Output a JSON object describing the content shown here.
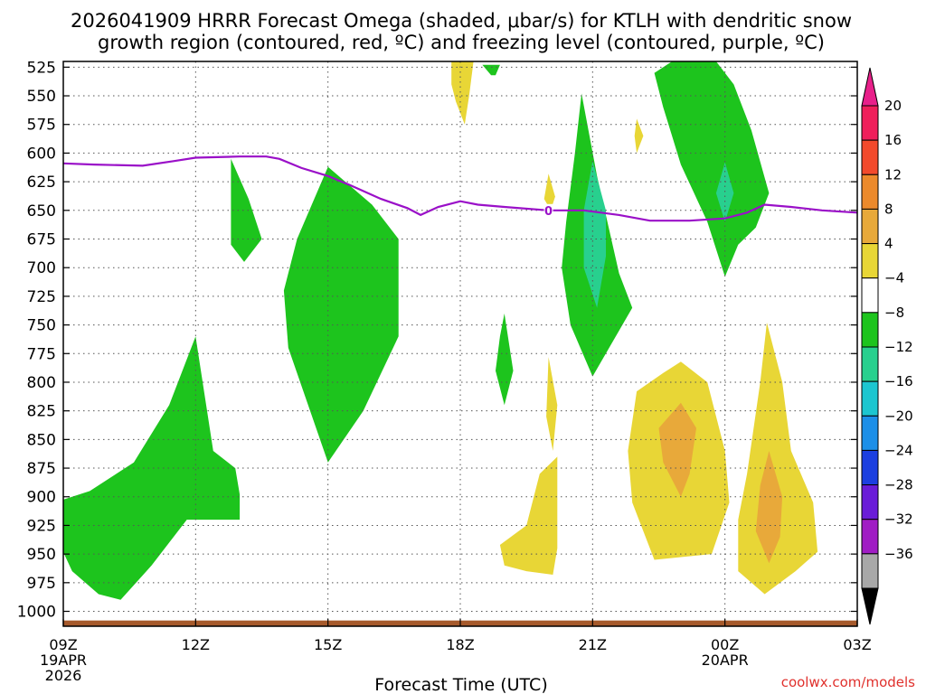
{
  "chart_data": {
    "type": "heatmap",
    "title_line1": "2026041909 HRRR Forecast Omega (shaded, μbar/s) for KTLH with dendritic snow",
    "title_line2": "growth region (contoured, red, ºC) and freezing level (contoured, purple, ºC)",
    "xlabel": "Forecast Time (UTC)",
    "credit": "coolwx.com/models",
    "x_ticks": [
      {
        "hour": 0,
        "label": "09Z",
        "sub1": "19APR",
        "sub2": "2026"
      },
      {
        "hour": 3,
        "label": "12Z",
        "sub1": "",
        "sub2": ""
      },
      {
        "hour": 6,
        "label": "15Z",
        "sub1": "",
        "sub2": ""
      },
      {
        "hour": 9,
        "label": "18Z",
        "sub1": "",
        "sub2": ""
      },
      {
        "hour": 12,
        "label": "21Z",
        "sub1": "",
        "sub2": ""
      },
      {
        "hour": 15,
        "label": "00Z",
        "sub1": "20APR",
        "sub2": ""
      },
      {
        "hour": 18,
        "label": "03Z",
        "sub1": "",
        "sub2": ""
      }
    ],
    "xlim": [
      0,
      18
    ],
    "y_ticks": [
      "525",
      "550",
      "575",
      "600",
      "625",
      "650",
      "675",
      "700",
      "725",
      "750",
      "775",
      "800",
      "825",
      "850",
      "875",
      "900",
      "925",
      "950",
      "975",
      "1000"
    ],
    "ylim": [
      520,
      1013
    ],
    "colorbar": {
      "labels": [
        "20",
        "16",
        "12",
        "8",
        "4",
        "−4",
        "−8",
        "−12",
        "−16",
        "−20",
        "−24",
        "−28",
        "−32",
        "−36"
      ],
      "colors": [
        "#ef1f5b",
        "#f24a2c",
        "#ec8a2c",
        "#e8a93a",
        "#e8d636",
        "#ffffff",
        "#1dc41d",
        "#28d08e",
        "#1cc6d0",
        "#1c8fe8",
        "#1c3fe0",
        "#6a1cd8",
        "#a01cc4",
        "#a8a8a8"
      ],
      "top_arrow_color": "#e8208a",
      "bottom_arrow_color": "#000000"
    },
    "regions": [
      {
        "name": "omega-neg4-region-a",
        "color": "#1dc41d",
        "points": [
          [
            -0.2,
            905
          ],
          [
            0.6,
            895
          ],
          [
            1.6,
            870
          ],
          [
            2.4,
            820
          ],
          [
            3.0,
            760
          ],
          [
            3.4,
            860
          ],
          [
            3.9,
            875
          ],
          [
            4.0,
            898
          ],
          [
            4.0,
            920
          ],
          [
            2.8,
            920
          ],
          [
            2.0,
            960
          ],
          [
            1.3,
            990
          ],
          [
            0.8,
            985
          ],
          [
            0.2,
            965
          ],
          [
            -0.1,
            940
          ]
        ]
      },
      {
        "name": "omega-neg4-region-b",
        "color": "#1dc41d",
        "points": [
          [
            3.8,
            605
          ],
          [
            4.2,
            640
          ],
          [
            4.5,
            675
          ],
          [
            4.1,
            695
          ],
          [
            3.8,
            680
          ],
          [
            3.8,
            640
          ]
        ]
      },
      {
        "name": "omega-neg4-region-c",
        "color": "#1dc41d",
        "points": [
          [
            6.0,
            612
          ],
          [
            7.0,
            645
          ],
          [
            7.6,
            675
          ],
          [
            7.6,
            760
          ],
          [
            6.8,
            825
          ],
          [
            6.0,
            870
          ],
          [
            5.1,
            770
          ],
          [
            5.0,
            720
          ],
          [
            5.3,
            675
          ]
        ]
      },
      {
        "name": "omega-neg4-region-d",
        "color": "#1dc41d",
        "points": [
          [
            10.0,
            740
          ],
          [
            10.2,
            790
          ],
          [
            10.0,
            820
          ],
          [
            9.8,
            790
          ],
          [
            9.9,
            760
          ]
        ]
      },
      {
        "name": "omega-neg4-region-e",
        "color": "#1dc41d",
        "points": [
          [
            11.75,
            548
          ],
          [
            12.1,
            620
          ],
          [
            12.6,
            705
          ],
          [
            12.9,
            735
          ],
          [
            12.0,
            795
          ],
          [
            11.5,
            750
          ],
          [
            11.3,
            700
          ],
          [
            11.4,
            660
          ],
          [
            11.6,
            600
          ]
        ]
      },
      {
        "name": "omega-neg4-region-f",
        "color": "#1dc41d",
        "points": [
          [
            13.8,
            520
          ],
          [
            14.8,
            520
          ],
          [
            15.2,
            540
          ],
          [
            15.6,
            580
          ],
          [
            16.0,
            635
          ],
          [
            15.7,
            665
          ],
          [
            15.3,
            680
          ],
          [
            15.0,
            708
          ],
          [
            14.6,
            660
          ],
          [
            14.0,
            610
          ],
          [
            13.6,
            560
          ],
          [
            13.4,
            530
          ]
        ]
      },
      {
        "name": "omega-neg4-region-g",
        "color": "#1dc41d",
        "points": [
          [
            9.5,
            523
          ],
          [
            9.9,
            523
          ],
          [
            9.8,
            532
          ],
          [
            9.7,
            532
          ]
        ]
      },
      {
        "name": "omega-neg8-region-a",
        "color": "#28d08e",
        "points": [
          [
            12.0,
            607
          ],
          [
            12.3,
            650
          ],
          [
            12.3,
            690
          ],
          [
            12.1,
            735
          ],
          [
            11.8,
            700
          ],
          [
            11.8,
            650
          ]
        ]
      },
      {
        "name": "omega-neg8-region-b",
        "color": "#28d08e",
        "points": [
          [
            15.0,
            608
          ],
          [
            15.2,
            635
          ],
          [
            15.0,
            660
          ],
          [
            14.8,
            635
          ]
        ]
      },
      {
        "name": "omega-pos4-region-a",
        "color": "#e8d636",
        "points": [
          [
            8.8,
            520
          ],
          [
            9.3,
            520
          ],
          [
            9.2,
            550
          ],
          [
            9.1,
            575
          ],
          [
            8.9,
            555
          ],
          [
            8.8,
            540
          ]
        ]
      },
      {
        "name": "omega-pos4-region-b",
        "color": "#e8d636",
        "points": [
          [
            9.9,
            942
          ],
          [
            10.5,
            925
          ],
          [
            10.8,
            880
          ],
          [
            11.2,
            865
          ],
          [
            11.2,
            945
          ],
          [
            11.1,
            968
          ],
          [
            10.5,
            965
          ],
          [
            10.0,
            960
          ]
        ]
      },
      {
        "name": "omega-pos4-region-c",
        "color": "#e8d636",
        "points": [
          [
            11.0,
            778
          ],
          [
            11.2,
            820
          ],
          [
            11.1,
            860
          ],
          [
            10.95,
            830
          ]
        ]
      },
      {
        "name": "omega-pos4-region-d",
        "color": "#e8d636",
        "points": [
          [
            11.0,
            618
          ],
          [
            11.15,
            638
          ],
          [
            11.05,
            650
          ],
          [
            10.9,
            640
          ]
        ]
      },
      {
        "name": "omega-pos4-region-e",
        "color": "#e8d636",
        "points": [
          [
            13.0,
            570
          ],
          [
            13.15,
            585
          ],
          [
            13.0,
            600
          ],
          [
            12.95,
            585
          ]
        ]
      },
      {
        "name": "omega-pos4-region-f",
        "color": "#e8d636",
        "points": [
          [
            14.0,
            782
          ],
          [
            14.6,
            800
          ],
          [
            15.0,
            860
          ],
          [
            15.1,
            905
          ],
          [
            14.7,
            950
          ],
          [
            13.4,
            955
          ],
          [
            12.9,
            905
          ],
          [
            12.8,
            860
          ],
          [
            13.0,
            808
          ],
          [
            13.6,
            792
          ]
        ]
      },
      {
        "name": "omega-pos4-region-g",
        "color": "#e8d636",
        "points": [
          [
            15.95,
            748
          ],
          [
            16.3,
            800
          ],
          [
            16.5,
            860
          ],
          [
            17.0,
            905
          ],
          [
            17.1,
            948
          ],
          [
            16.6,
            965
          ],
          [
            15.9,
            985
          ],
          [
            15.3,
            965
          ],
          [
            15.3,
            920
          ],
          [
            15.5,
            880
          ],
          [
            15.8,
            800
          ]
        ]
      },
      {
        "name": "omega-pos8-region-a",
        "color": "#e8a93a",
        "points": [
          [
            14.0,
            818
          ],
          [
            14.35,
            840
          ],
          [
            14.2,
            880
          ],
          [
            14.0,
            900
          ],
          [
            13.6,
            870
          ],
          [
            13.5,
            840
          ]
        ]
      },
      {
        "name": "omega-pos8-region-b",
        "color": "#e8a93a",
        "points": [
          [
            16.0,
            860
          ],
          [
            16.3,
            900
          ],
          [
            16.25,
            935
          ],
          [
            16.0,
            958
          ],
          [
            15.7,
            930
          ],
          [
            15.8,
            890
          ]
        ]
      }
    ],
    "freezing_level": {
      "color": "#9a10c8",
      "label": "0",
      "label_x": 11.0,
      "points": [
        [
          0,
          609
        ],
        [
          0.7,
          610
        ],
        [
          1.8,
          611
        ],
        [
          2.5,
          607
        ],
        [
          3.0,
          604
        ],
        [
          4.0,
          603
        ],
        [
          4.6,
          603
        ],
        [
          4.9,
          605
        ],
        [
          5.4,
          613
        ],
        [
          6.0,
          620
        ],
        [
          6.5,
          628
        ],
        [
          7.2,
          640
        ],
        [
          7.8,
          648
        ],
        [
          8.1,
          654
        ],
        [
          8.5,
          647
        ],
        [
          9.0,
          642
        ],
        [
          9.4,
          645
        ],
        [
          10.0,
          647
        ],
        [
          11.0,
          650
        ],
        [
          11.8,
          650
        ],
        [
          12.6,
          654
        ],
        [
          13.3,
          659
        ],
        [
          14.2,
          659
        ],
        [
          15.0,
          657
        ],
        [
          15.5,
          652
        ],
        [
          15.9,
          645
        ],
        [
          16.5,
          647
        ],
        [
          17.2,
          650
        ],
        [
          18.0,
          652
        ]
      ]
    },
    "terrain": {
      "color": "#a65a2c",
      "top_pressure": 1008
    }
  }
}
